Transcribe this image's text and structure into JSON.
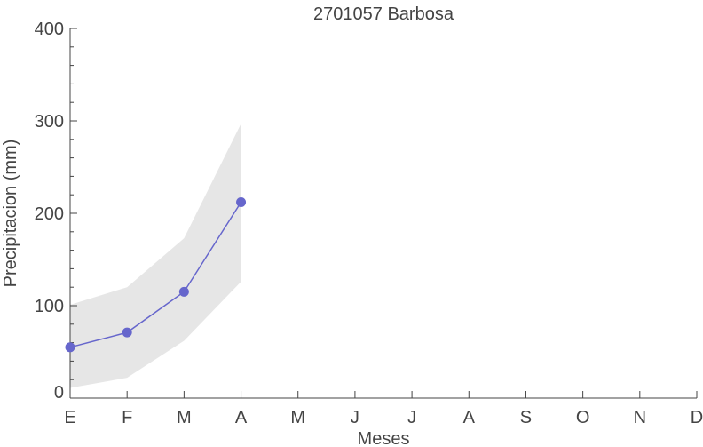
{
  "chart_data": {
    "type": "line",
    "title": "2701057 Barbosa",
    "x_label": "Meses",
    "y_label": "Precipitacion (mm)",
    "categories": [
      "E",
      "F",
      "M",
      "A",
      "M",
      "J",
      "J",
      "A",
      "S",
      "O",
      "N",
      "D"
    ],
    "series": [
      {
        "color": "#6666cc",
        "values": [
          55,
          71,
          115,
          212,
          null,
          null,
          null,
          null,
          null,
          null,
          null,
          null
        ]
      }
    ],
    "band": {
      "color": "#e6e6e6",
      "lower": [
        11,
        22,
        62,
        126,
        null,
        null,
        null,
        null,
        null,
        null,
        null,
        null
      ],
      "upper": [
        101,
        120,
        173,
        297,
        null,
        null,
        null,
        null,
        null,
        null,
        null,
        null
      ]
    },
    "ylim": [
      0,
      400
    ],
    "yticks": [
      0,
      100,
      200,
      300,
      400
    ],
    "minor_yticks": [
      20,
      40,
      60,
      80,
      120,
      140,
      160,
      180,
      220,
      240,
      260,
      280,
      320,
      340,
      360,
      380
    ]
  }
}
